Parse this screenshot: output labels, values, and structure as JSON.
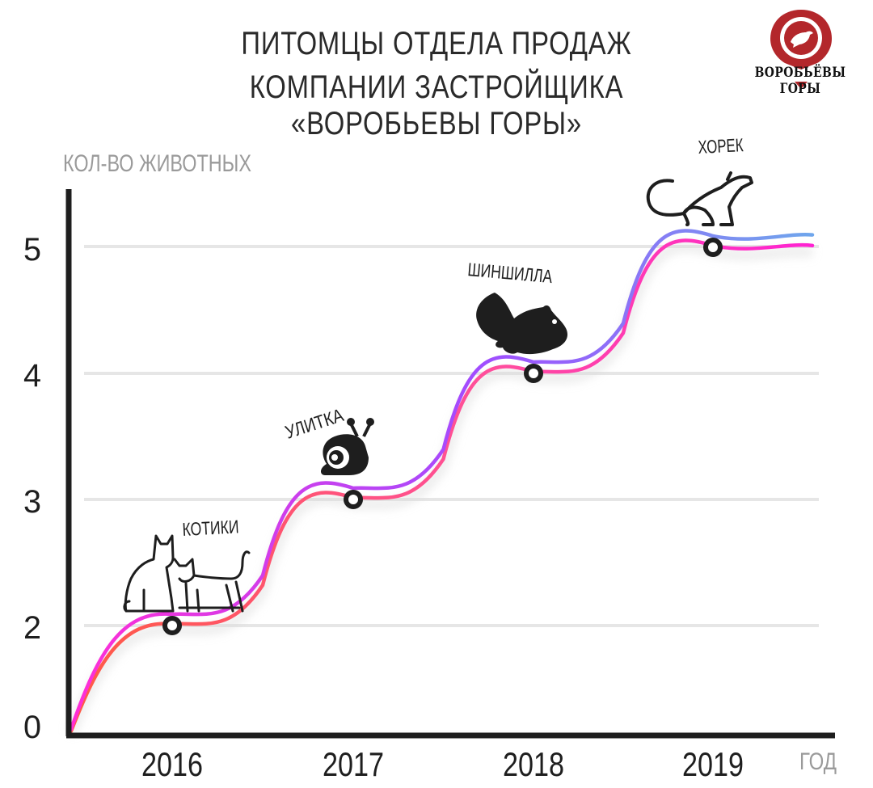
{
  "title_line1": "ПИТОМЦЫ ОТДЕЛА ПРОДАЖ",
  "title_line2": "КОМПАНИИ ЗАСТРОЙЩИКА «ВОРОБЬЕВЫ ГОРЫ»",
  "logo": {
    "text": "ВОРОБЬЁВЫ ГОРЫ",
    "color": "#b3272b"
  },
  "chart_data": {
    "type": "line",
    "ylabel": "КОЛ-ВО ЖИВОТНЫХ",
    "xlabel": "ГОД",
    "categories": [
      "2016",
      "2017",
      "2018",
      "2019"
    ],
    "y_ticks": [
      "0",
      "2",
      "3",
      "4",
      "5"
    ],
    "values": [
      2,
      3,
      4,
      5
    ],
    "grid": true,
    "annotations": [
      "КОТИКИ",
      "УЛИТКА",
      "ШИНШИЛЛА",
      "ХОРЕК"
    ],
    "line_colors": {
      "top": [
        "#ff2ed6",
        "#a14cff",
        "#6fa6ec"
      ],
      "bottom": [
        "#ff5a45",
        "#ff4f9a",
        "#ff22d2"
      ]
    }
  }
}
